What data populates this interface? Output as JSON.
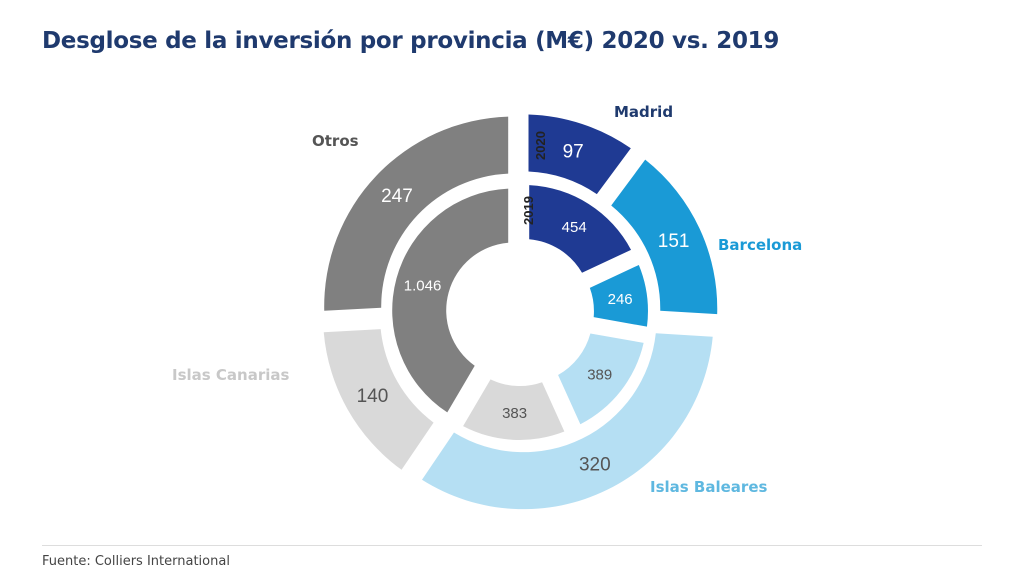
{
  "chart_data": {
    "type": "pie",
    "subtype": "nested-donut",
    "title": "Desglose de la inversión por provincia (M€) 2020 vs. 2019",
    "categories": [
      "Madrid",
      "Barcelona",
      "Islas Baleares",
      "Islas Canarias",
      "Otros"
    ],
    "colors": [
      "#1f3a93",
      "#1a9ad6",
      "#b5dff3",
      "#d9d9d9",
      "#808080"
    ],
    "label_colors": [
      "#1f3a6e",
      "#1a9ad6",
      "#5fb8e0",
      "#c8c8c8",
      "#555555"
    ],
    "series": [
      {
        "name": "2020",
        "ring": "outer",
        "values": [
          97,
          151,
          320,
          140,
          247
        ],
        "labels": [
          "97",
          "151",
          "320",
          "140",
          "247"
        ]
      },
      {
        "name": "2019",
        "ring": "inner",
        "values": [
          454,
          246,
          389,
          383,
          1046
        ],
        "labels": [
          "454",
          "246",
          "389",
          "383",
          "1.046"
        ]
      }
    ],
    "start": "top",
    "direction": "clockwise",
    "legend": "none"
  },
  "footer": {
    "source": "Fuente: Colliers International"
  }
}
